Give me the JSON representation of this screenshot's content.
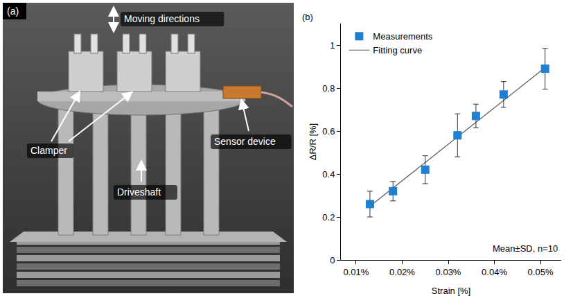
{
  "photo_panel": {
    "label": "(a)",
    "annotations": [
      "Moving directions",
      "Clamper",
      "Sensor device",
      "Driveshaft"
    ]
  },
  "chart_data": {
    "type": "scatter",
    "x_label": "Strain [%]",
    "y_label": "ΔR/R [%]",
    "annotations": [
      "(b)",
      "Mean±SD, n=10"
    ],
    "series": [
      {
        "name": "Measurements",
        "type": "scatter",
        "marker": "square",
        "color": "#1f7fd0",
        "x": [
          0.013,
          0.018,
          0.025,
          0.032,
          0.036,
          0.042,
          0.051
        ],
        "values": [
          0.26,
          0.32,
          0.42,
          0.58,
          0.67,
          0.77,
          0.89
        ],
        "error": [
          0.06,
          0.045,
          0.065,
          0.1,
          0.055,
          0.06,
          0.095
        ]
      },
      {
        "name": "Fitting curve",
        "type": "line",
        "color": "#555555",
        "line_style": "solid",
        "x": [
          0.013,
          0.051
        ],
        "values": [
          0.25,
          0.895
        ]
      }
    ],
    "xlim": [
      0.0067,
      0.0545
    ],
    "xticks": [
      {
        "value": 0.01,
        "label": "0.01%"
      },
      {
        "value": 0.02,
        "label": "0.02%"
      },
      {
        "value": 0.03,
        "label": "0.03%"
      },
      {
        "value": 0.04,
        "label": "0.04%"
      },
      {
        "value": 0.05,
        "label": "0.05%"
      }
    ],
    "ylim": [
      0,
      1.1
    ],
    "yticks": [
      0,
      0.2,
      0.4,
      0.6,
      0.8,
      1
    ],
    "grid": false,
    "legend": "top left"
  }
}
